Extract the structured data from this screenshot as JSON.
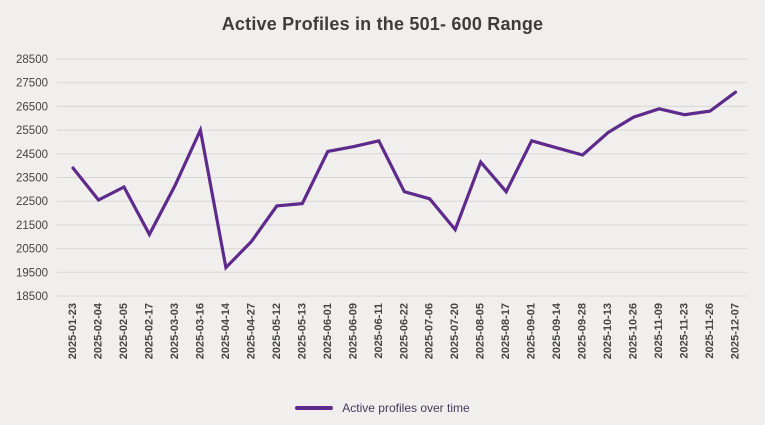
{
  "colors": {
    "background": "#f0efed",
    "gridline": "#d8d7d4",
    "series_line": "#5e2a8b",
    "title_text": "#3d3d3d",
    "tick_text": "#454545",
    "legend_text": "#45395c"
  },
  "legend": {
    "label": "Active profiles over time"
  },
  "chart_data": {
    "type": "line",
    "title": "Active Profiles in the 501- 600 Range",
    "xlabel": "",
    "ylabel": "",
    "grid": "horizontal",
    "legend_position": "bottom-center",
    "ylim": [
      18500,
      28500
    ],
    "yticks": [
      18500,
      19500,
      20500,
      21500,
      22500,
      23500,
      24500,
      25500,
      26500,
      27500,
      28500
    ],
    "x": [
      "2025-01-23",
      "2025-02-04",
      "2025-02-05",
      "2025-02-17",
      "2025-03-03",
      "2025-03-16",
      "2025-04-14",
      "2025-04-27",
      "2025-05-12",
      "2025-05-13",
      "2025-06-01",
      "2025-06-09",
      "2025-06-11",
      "2025-06-22",
      "2025-07-06",
      "2025-07-20",
      "2025-08-05",
      "2025-08-17",
      "2025-09-01",
      "2025-09-14",
      "2025-09-28",
      "2025-10-13",
      "2025-10-26",
      "2025-11-09",
      "2025-11-23",
      "2025-11-26",
      "2025-12-07"
    ],
    "series": [
      {
        "name": "Active profiles over time",
        "values": [
          23900,
          22550,
          23100,
          21100,
          23150,
          25500,
          19700,
          20800,
          22300,
          22400,
          24600,
          24800,
          25050,
          22900,
          22600,
          21300,
          24150,
          22900,
          25050,
          24750,
          24450,
          25400,
          26050,
          26400,
          26150,
          26300,
          27100
        ]
      }
    ]
  }
}
